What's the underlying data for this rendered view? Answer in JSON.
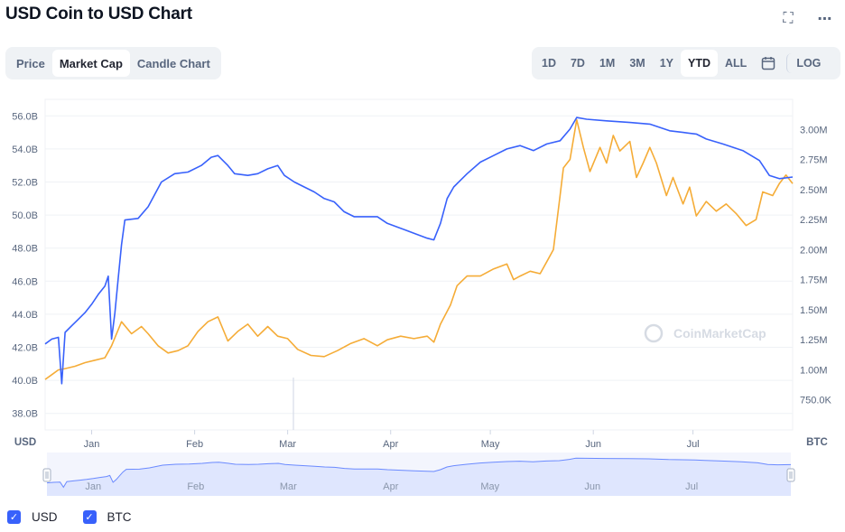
{
  "title": "USD Coin to USD Chart",
  "header_icons": {
    "expand": "expand-icon",
    "more": "more-icon",
    "more_glyph": "⋯",
    "expand_glyph": "⛶"
  },
  "tabs": [
    {
      "label": "Price",
      "active": false
    },
    {
      "label": "Market Cap",
      "active": true
    },
    {
      "label": "Candle Chart",
      "active": false
    }
  ],
  "ranges": [
    {
      "label": "1D",
      "active": false
    },
    {
      "label": "7D",
      "active": false
    },
    {
      "label": "1M",
      "active": false
    },
    {
      "label": "3M",
      "active": false
    },
    {
      "label": "1Y",
      "active": false
    },
    {
      "label": "YTD",
      "active": true
    },
    {
      "label": "ALL",
      "active": false
    }
  ],
  "log_label": "LOG",
  "calendar_icon": "calendar-icon",
  "watermark": "CoinMarketCap",
  "legend": [
    {
      "label": "USD",
      "checked": true
    },
    {
      "label": "BTC",
      "checked": true
    }
  ],
  "colors": {
    "usd_line": "#3861fb",
    "btc_line": "#f5ac37",
    "grid": "#eff2f5",
    "axis_text": "#58667e",
    "navigator_fill": "#dfe6fe",
    "navigator_line": "#6b8aff"
  },
  "chart_data": {
    "type": "line",
    "x_axis": {
      "ticks": [
        "Jan",
        "Feb",
        "Mar",
        "Apr",
        "May",
        "Jun",
        "Jul"
      ],
      "range": [
        "2021-12-18",
        "2022-07-31"
      ]
    },
    "y_left": {
      "label": "USD",
      "ticks": [
        "56.0B",
        "54.0B",
        "52.0B",
        "50.0B",
        "48.0B",
        "46.0B",
        "44.0B",
        "42.0B",
        "40.0B",
        "38.0B"
      ],
      "range": [
        37,
        57
      ]
    },
    "y_right": {
      "label": "BTC",
      "ticks": [
        "3.00M",
        "2.75M",
        "2.50M",
        "2.25M",
        "2.00M",
        "1.75M",
        "1.50M",
        "1.25M",
        "1.00M",
        "750.0K"
      ],
      "range": [
        0.5,
        3.25
      ]
    },
    "series": [
      {
        "axis": "left",
        "unit": "B USD",
        "points": [
          [
            "2021-12-18",
            42.2
          ],
          [
            "2021-12-20",
            42.5
          ],
          [
            "2021-12-22",
            42.6
          ],
          [
            "2021-12-23",
            39.8
          ],
          [
            "2021-12-24",
            42.9
          ],
          [
            "2021-12-26",
            43.3
          ],
          [
            "2021-12-28",
            43.7
          ],
          [
            "2021-12-30",
            44.1
          ],
          [
            "2022-01-01",
            44.6
          ],
          [
            "2022-01-03",
            45.2
          ],
          [
            "2022-01-05",
            45.7
          ],
          [
            "2022-01-06",
            46.3
          ],
          [
            "2022-01-07",
            42.5
          ],
          [
            "2022-01-08",
            44.1
          ],
          [
            "2022-01-09",
            46.2
          ],
          [
            "2022-01-10",
            48.2
          ],
          [
            "2022-01-11",
            49.7
          ],
          [
            "2022-01-15",
            49.8
          ],
          [
            "2022-01-18",
            50.5
          ],
          [
            "2022-01-22",
            52.0
          ],
          [
            "2022-01-26",
            52.5
          ],
          [
            "2022-01-30",
            52.6
          ],
          [
            "2022-02-03",
            53.0
          ],
          [
            "2022-02-06",
            53.5
          ],
          [
            "2022-02-08",
            53.6
          ],
          [
            "2022-02-11",
            53.0
          ],
          [
            "2022-02-13",
            52.5
          ],
          [
            "2022-02-17",
            52.4
          ],
          [
            "2022-02-20",
            52.5
          ],
          [
            "2022-02-23",
            52.8
          ],
          [
            "2022-02-26",
            53.0
          ],
          [
            "2022-02-28",
            52.4
          ],
          [
            "2022-03-03",
            52.0
          ],
          [
            "2022-03-06",
            51.7
          ],
          [
            "2022-03-09",
            51.4
          ],
          [
            "2022-03-12",
            51.0
          ],
          [
            "2022-03-15",
            50.8
          ],
          [
            "2022-03-18",
            50.2
          ],
          [
            "2022-03-21",
            49.9
          ],
          [
            "2022-03-25",
            49.9
          ],
          [
            "2022-03-28",
            49.9
          ],
          [
            "2022-03-31",
            49.5
          ],
          [
            "2022-04-04",
            49.2
          ],
          [
            "2022-04-08",
            48.9
          ],
          [
            "2022-04-12",
            48.6
          ],
          [
            "2022-04-14",
            48.5
          ],
          [
            "2022-04-16",
            49.5
          ],
          [
            "2022-04-18",
            51.0
          ],
          [
            "2022-04-20",
            51.7
          ],
          [
            "2022-04-24",
            52.5
          ],
          [
            "2022-04-28",
            53.2
          ],
          [
            "2022-05-02",
            53.6
          ],
          [
            "2022-05-06",
            54.0
          ],
          [
            "2022-05-10",
            54.2
          ],
          [
            "2022-05-14",
            53.9
          ],
          [
            "2022-05-18",
            54.3
          ],
          [
            "2022-05-22",
            54.5
          ],
          [
            "2022-05-25",
            55.2
          ],
          [
            "2022-05-27",
            55.9
          ],
          [
            "2022-05-30",
            55.8
          ],
          [
            "2022-06-05",
            55.7
          ],
          [
            "2022-06-12",
            55.6
          ],
          [
            "2022-06-18",
            55.5
          ],
          [
            "2022-06-24",
            55.1
          ],
          [
            "2022-06-28",
            55.0
          ],
          [
            "2022-07-02",
            54.9
          ],
          [
            "2022-07-05",
            54.6
          ],
          [
            "2022-07-10",
            54.3
          ],
          [
            "2022-07-16",
            53.9
          ],
          [
            "2022-07-21",
            53.3
          ],
          [
            "2022-07-24",
            52.4
          ],
          [
            "2022-07-27",
            52.2
          ],
          [
            "2022-07-31",
            52.3
          ]
        ]
      },
      {
        "axis": "right",
        "unit": "BTC",
        "points": [
          [
            "2021-12-18",
            0.92
          ],
          [
            "2021-12-20",
            0.96
          ],
          [
            "2021-12-22",
            1.0
          ],
          [
            "2021-12-24",
            1.01
          ],
          [
            "2021-12-27",
            1.03
          ],
          [
            "2021-12-30",
            1.06
          ],
          [
            "2022-01-02",
            1.08
          ],
          [
            "2022-01-05",
            1.1
          ],
          [
            "2022-01-07",
            1.2
          ],
          [
            "2022-01-10",
            1.4
          ],
          [
            "2022-01-13",
            1.3
          ],
          [
            "2022-01-16",
            1.36
          ],
          [
            "2022-01-18",
            1.3
          ],
          [
            "2022-01-21",
            1.2
          ],
          [
            "2022-01-24",
            1.14
          ],
          [
            "2022-01-27",
            1.16
          ],
          [
            "2022-01-30",
            1.2
          ],
          [
            "2022-02-02",
            1.32
          ],
          [
            "2022-02-05",
            1.4
          ],
          [
            "2022-02-08",
            1.44
          ],
          [
            "2022-02-11",
            1.24
          ],
          [
            "2022-02-14",
            1.32
          ],
          [
            "2022-02-17",
            1.38
          ],
          [
            "2022-02-20",
            1.28
          ],
          [
            "2022-02-23",
            1.36
          ],
          [
            "2022-02-26",
            1.28
          ],
          [
            "2022-03-01",
            1.26
          ],
          [
            "2022-03-04",
            1.17
          ],
          [
            "2022-03-08",
            1.12
          ],
          [
            "2022-03-12",
            1.11
          ],
          [
            "2022-03-16",
            1.16
          ],
          [
            "2022-03-20",
            1.22
          ],
          [
            "2022-03-24",
            1.26
          ],
          [
            "2022-03-28",
            1.2
          ],
          [
            "2022-03-31",
            1.25
          ],
          [
            "2022-04-04",
            1.28
          ],
          [
            "2022-04-08",
            1.26
          ],
          [
            "2022-04-12",
            1.28
          ],
          [
            "2022-04-14",
            1.23
          ],
          [
            "2022-04-16",
            1.38
          ],
          [
            "2022-04-19",
            1.54
          ],
          [
            "2022-04-21",
            1.7
          ],
          [
            "2022-04-24",
            1.78
          ],
          [
            "2022-04-28",
            1.78
          ],
          [
            "2022-05-02",
            1.84
          ],
          [
            "2022-05-06",
            1.88
          ],
          [
            "2022-05-08",
            1.75
          ],
          [
            "2022-05-10",
            1.78
          ],
          [
            "2022-05-13",
            1.82
          ],
          [
            "2022-05-16",
            1.8
          ],
          [
            "2022-05-18",
            1.9
          ],
          [
            "2022-05-20",
            2.0
          ],
          [
            "2022-05-22",
            2.45
          ],
          [
            "2022-05-23",
            2.68
          ],
          [
            "2022-05-25",
            2.75
          ],
          [
            "2022-05-27",
            3.08
          ],
          [
            "2022-05-29",
            2.85
          ],
          [
            "2022-05-31",
            2.65
          ],
          [
            "2022-06-03",
            2.85
          ],
          [
            "2022-06-05",
            2.72
          ],
          [
            "2022-06-07",
            2.95
          ],
          [
            "2022-06-09",
            2.82
          ],
          [
            "2022-06-12",
            2.9
          ],
          [
            "2022-06-14",
            2.6
          ],
          [
            "2022-06-16",
            2.72
          ],
          [
            "2022-06-18",
            2.85
          ],
          [
            "2022-06-20",
            2.72
          ],
          [
            "2022-06-23",
            2.45
          ],
          [
            "2022-06-25",
            2.6
          ],
          [
            "2022-06-28",
            2.38
          ],
          [
            "2022-06-30",
            2.52
          ],
          [
            "2022-07-02",
            2.28
          ],
          [
            "2022-07-05",
            2.4
          ],
          [
            "2022-07-08",
            2.32
          ],
          [
            "2022-07-11",
            2.38
          ],
          [
            "2022-07-14",
            2.3
          ],
          [
            "2022-07-17",
            2.2
          ],
          [
            "2022-07-20",
            2.25
          ],
          [
            "2022-07-22",
            2.48
          ],
          [
            "2022-07-25",
            2.45
          ],
          [
            "2022-07-27",
            2.55
          ],
          [
            "2022-07-29",
            2.62
          ],
          [
            "2022-07-31",
            2.55
          ]
        ]
      }
    ],
    "grid": true
  }
}
